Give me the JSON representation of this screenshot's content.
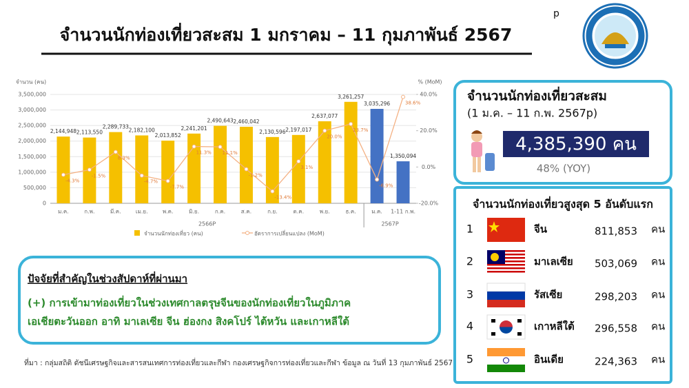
{
  "header": {
    "title": "จำนวนนักท่องเที่ยวสะสม 1 มกราคม – 11 กุมภาพันธ์ 2567",
    "superscript": "p"
  },
  "chart_data": {
    "type": "bar-line",
    "ylabel": "จำนวน (คน)",
    "y2label": "% (MoM)",
    "categories": [
      "ม.ค.",
      "ก.พ.",
      "มี.ค.",
      "เม.ย.",
      "พ.ค.",
      "มิ.ย.",
      "ก.ค.",
      "ส.ค.",
      "ก.ย.",
      "ต.ค.",
      "พ.ย.",
      "ธ.ค.",
      "ม.ค.",
      "1-11 ก.พ."
    ],
    "group_labels": [
      "2566P",
      "2567P"
    ],
    "series": [
      {
        "name": "จำนวนนักท่องเที่ยว (คน)",
        "type": "bar",
        "color": "#f5c000",
        "colors": [
          "#f5c000",
          "#f5c000",
          "#f5c000",
          "#f5c000",
          "#f5c000",
          "#f5c000",
          "#f5c000",
          "#f5c000",
          "#f5c000",
          "#f5c000",
          "#f5c000",
          "#f5c000",
          "#4472c4",
          "#4472c4"
        ],
        "values": [
          2144948,
          2113550,
          2289733,
          2182100,
          2013852,
          2241201,
          2490643,
          2460042,
          2130596,
          2197017,
          2637077,
          3261257,
          3035296,
          1350094
        ],
        "value_labels": [
          "2,144,948",
          "2,113,550",
          "2,289,733",
          "2,182,100",
          "2,013,852",
          "2,241,201",
          "2,490,643",
          "2,460,042",
          "2,130,596",
          "2,197,017",
          "2,637,077",
          "3,261,257",
          "3,035,296",
          "1,350,094"
        ]
      },
      {
        "name": "อัตราการเปลี่ยนแปลง (MoM)",
        "type": "line",
        "axis": "y2",
        "color": "#f4b183",
        "values": [
          -4.3,
          -1.5,
          8.3,
          -4.7,
          -7.7,
          11.3,
          11.1,
          -1.2,
          -13.4,
          3.1,
          20.0,
          23.7,
          -6.9,
          38.6
        ],
        "value_labels": [
          "-4.3%",
          "-1.5%",
          "8.3%",
          "-4.7%",
          "-7.7%",
          "11.3%",
          "11.1%",
          "-1.2%",
          "-13.4%",
          "3.1%",
          "20.0%",
          "23.7%",
          "-6.9%",
          "38.6%"
        ]
      }
    ],
    "ylim": [
      0,
      3500000
    ],
    "yticks": [
      0,
      {
        "value": 500000,
        "label": "500,000"
      },
      {
        "value": 1000000,
        "label": "1,000,000"
      },
      {
        "value": 1500000,
        "label": "1,500,000"
      },
      {
        "value": 2000000,
        "label": "2,000,000"
      },
      {
        "value": 2500000,
        "label": "2,500,000"
      },
      {
        "value": 3000000,
        "label": "3,000,000"
      },
      {
        "value": 3500000,
        "label": "3,500,000"
      }
    ],
    "y2lim": [
      -20,
      40
    ],
    "y2ticks": [
      {
        "value": -20,
        "label": "-20.0%"
      },
      {
        "value": 0,
        "label": "0.0%"
      },
      {
        "value": 20,
        "label": "20.0%"
      },
      {
        "value": 40,
        "label": "40.0%"
      }
    ],
    "grid": true
  },
  "summary": {
    "title": "จำนวนนักท่องเที่ยวสะสม",
    "subtitle": "(1 ม.ค. – 11 ก.พ. 2567p)",
    "value": "4,385,390 คน",
    "yoy": "48% (YOY)"
  },
  "top5": {
    "title": "จำนวนนักท่องเที่ยวสูงสุด 5 อันดับแรก",
    "rows": [
      [
        "1",
        "จีน",
        "811,853",
        "คน"
      ],
      [
        "2",
        "มาเลเซีย",
        "503,069",
        "คน"
      ],
      [
        "3",
        "รัสเซีย",
        "298,203",
        "คน"
      ],
      [
        "4",
        "เกาหลีใต้",
        "296,558",
        "คน"
      ],
      [
        "5",
        "อินเดีย",
        "224,363",
        "คน"
      ]
    ]
  },
  "factors": {
    "heading": "ปัจจัยที่สำคัญในช่วงสัปดาห์ที่ผ่านมา",
    "lines": [
      "(+) การเข้ามาท่องเที่ยวในช่วงเทศกาลตรุษจีนของนักท่องเที่ยวในภูมิภาค",
      "เอเชียตะวันออก อาทิ มาเลเซีย จีน ฮ่องกง สิงคโปร์ ไต้หวัน และเกาหลีใต้"
    ]
  },
  "source": "ที่มา : กลุ่มสถิติ ดัชนีเศรษฐกิจและสารสนเทศการท่องเที่ยวและกีฬา กองเศรษฐกิจการท่องเที่ยวและกีฬา ข้อมูล ณ วันที่ 13 กุมภาพันธ์ 2567"
}
